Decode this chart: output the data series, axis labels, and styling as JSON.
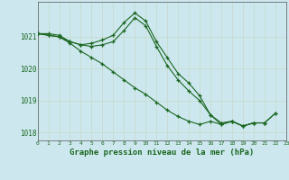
{
  "title": "Graphe pression niveau de la mer (hPa)",
  "bg_color": "#cce8ee",
  "grid_color": "#c8d8c8",
  "line_color": "#1a6620",
  "series": [
    [
      1021.1,
      1021.1,
      1021.05,
      1020.85,
      1020.75,
      1020.8,
      1020.9,
      1021.05,
      1021.45,
      1021.75,
      1021.5,
      1020.85,
      1020.35,
      1019.85,
      1019.55,
      1019.15,
      1018.55,
      1018.3,
      1018.35,
      1018.2,
      1018.3,
      1018.3,
      1018.6,
      null
    ],
    [
      1021.1,
      1021.05,
      1021.0,
      1020.85,
      1020.75,
      1020.7,
      1020.75,
      1020.85,
      1021.2,
      1021.6,
      1021.35,
      1020.7,
      1020.1,
      1019.65,
      1019.3,
      1019.0,
      1018.55,
      1018.25,
      1018.35,
      1018.2,
      1018.3,
      1018.3,
      null,
      null
    ],
    [
      1021.1,
      1021.05,
      1021.0,
      1020.8,
      1020.55,
      1020.35,
      1020.15,
      1019.9,
      1019.65,
      1019.4,
      1019.2,
      1018.95,
      1018.7,
      1018.5,
      1018.35,
      1018.25,
      1018.35,
      1018.25,
      1018.35,
      1018.2,
      1018.3,
      1018.3,
      1018.6,
      null
    ]
  ],
  "ylim": [
    1017.75,
    1022.1
  ],
  "yticks": [
    1018,
    1019,
    1020,
    1021
  ],
  "xlim": [
    0,
    23
  ]
}
